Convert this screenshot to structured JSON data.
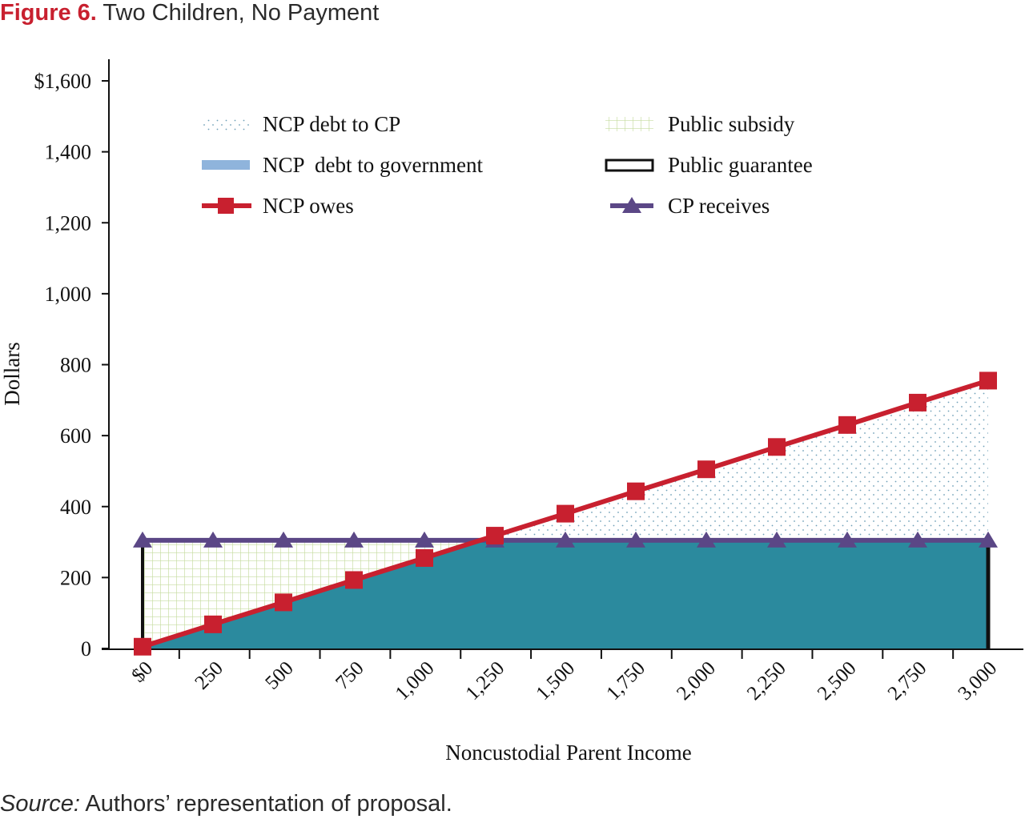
{
  "figure": {
    "number": "Figure 6.",
    "title": "Two Children, No Payment",
    "source_label": "Source:",
    "source_text": "Authors’ representation of proposal."
  },
  "colors": {
    "ncp_owes": "#c8202f",
    "cp_receives": "#5b4786",
    "debt_to_government": "#2b8a9e",
    "legend_debt_to_government": "#8fb4dc",
    "public_subsidy_grid": "#c6dca0",
    "ncp_debt_to_cp_dots": "#6f9fb8",
    "public_guarantee": "#111111"
  },
  "chart_data": {
    "type": "line",
    "xlabel": "Noncustodial Parent Income",
    "ylabel": "Dollars",
    "x_tick_labels": [
      "$0",
      "250",
      "500",
      "750",
      "1,000",
      "1,250",
      "1,500",
      "1,750",
      "2,000",
      "2,250",
      "2,500",
      "2,750",
      "3,000"
    ],
    "y_tick_labels": [
      "0",
      "200",
      "400",
      "600",
      "800",
      "1,000",
      "1,200",
      "1,400",
      "$1,600"
    ],
    "xlim": [
      0,
      3000
    ],
    "ylim": [
      0,
      1600
    ],
    "grid": false,
    "legend_position": "top",
    "x": [
      0,
      250,
      500,
      750,
      1000,
      1250,
      1500,
      1750,
      2000,
      2250,
      2500,
      2750,
      3000
    ],
    "series": [
      {
        "name": "NCP owes",
        "values": [
          5,
          68,
          130,
          193,
          255,
          318,
          380,
          443,
          505,
          568,
          630,
          693,
          755
        ],
        "marker": "square"
      },
      {
        "name": "CP receives",
        "values": [
          305,
          305,
          305,
          305,
          305,
          305,
          305,
          305,
          305,
          305,
          305,
          305,
          305
        ],
        "marker": "triangle"
      }
    ],
    "areas": [
      {
        "name": "NCP debt to CP",
        "pattern": "dots"
      },
      {
        "name": "NCP  debt to government",
        "pattern": "solid"
      },
      {
        "name": "Public subsidy",
        "pattern": "grid"
      },
      {
        "name": "Public guarantee",
        "pattern": "outline"
      }
    ],
    "legend": [
      {
        "label": "NCP debt to CP",
        "key": "dots"
      },
      {
        "label": "Public subsidy",
        "key": "grid"
      },
      {
        "label": "NCP  debt to government",
        "key": "solid"
      },
      {
        "label": "Public guarantee",
        "key": "outline"
      },
      {
        "label": "NCP owes",
        "key": "line-square"
      },
      {
        "label": "CP receives",
        "key": "line-triangle"
      }
    ]
  }
}
